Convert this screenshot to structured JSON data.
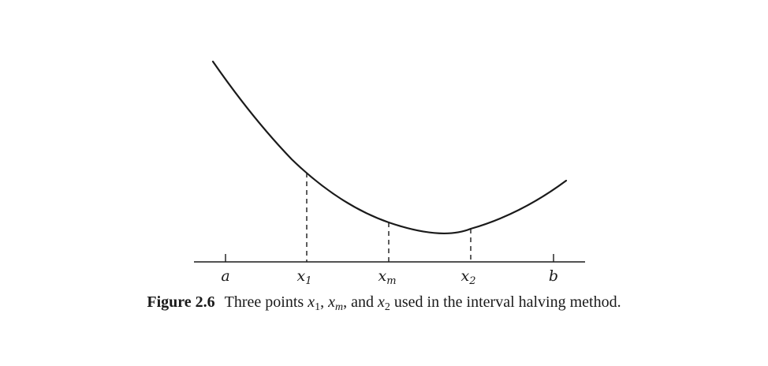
{
  "figure": {
    "tick_labels": {
      "a": "a",
      "x1_base": "x",
      "x1_sub": "1",
      "xm_base": "x",
      "xm_sub": "m",
      "x2_base": "x",
      "x2_sub": "2",
      "b": "b"
    },
    "caption": {
      "label": "Figure 2.6",
      "text_part1": "Three points ",
      "x1_base": "x",
      "x1_sub": "1",
      "sep1": ", ",
      "xm_base": "x",
      "xm_sub": "m",
      "sep2": ", and ",
      "x2_base": "x",
      "x2_sub": "2",
      "text_part2": " used in the interval halving method."
    },
    "colors": {
      "ink": "#1a1a1a",
      "background": "#ffffff"
    }
  }
}
